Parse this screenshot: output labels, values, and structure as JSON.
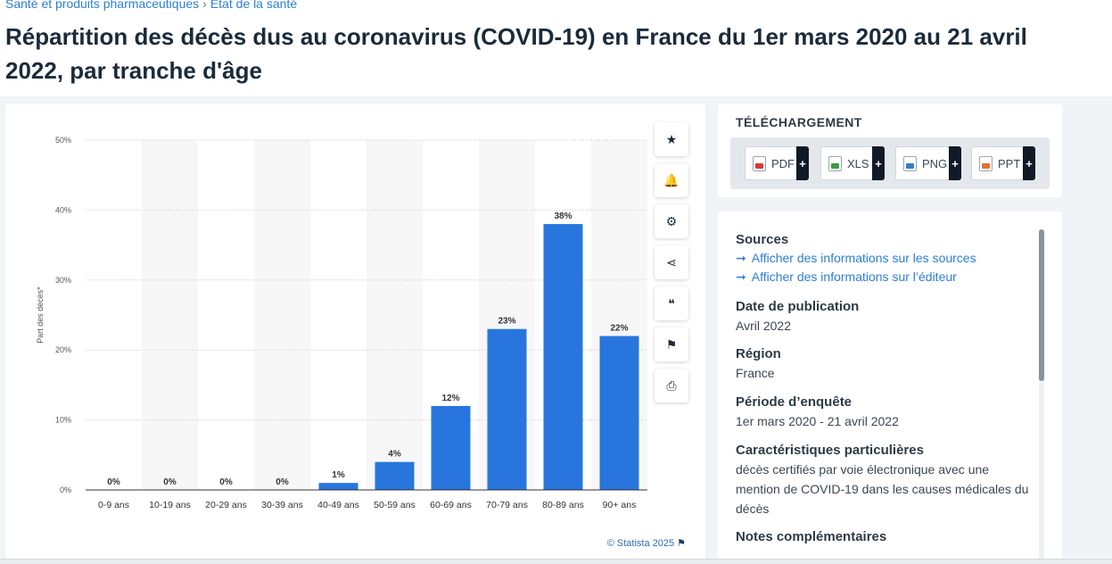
{
  "breadcrumb": {
    "item1": "Santé et produits pharmaceutiques",
    "item2": "Etat de la santé",
    "sep": "›"
  },
  "title": "Répartition des décès dus au coronavirus (COVID-19) en France du 1er mars 2020 au 21 avril 2022, par tranche d'âge",
  "chart_data": {
    "type": "bar",
    "title": "",
    "xlabel": "",
    "ylabel": "Part des décès*",
    "categories": [
      "0-9 ans",
      "10-19 ans",
      "20-29 ans",
      "30-39 ans",
      "40-49 ans",
      "50-59 ans",
      "60-69 ans",
      "70-79 ans",
      "80-89 ans",
      "90+ ans"
    ],
    "values": [
      0,
      0,
      0,
      0,
      1,
      4,
      12,
      23,
      38,
      22
    ],
    "value_labels": [
      "0%",
      "0%",
      "0%",
      "0%",
      "1%",
      "4%",
      "12%",
      "23%",
      "38%",
      "22%"
    ],
    "ylim": [
      0,
      50
    ],
    "yticks": [
      0,
      10,
      20,
      30,
      40,
      50
    ],
    "ytick_labels": [
      "0%",
      "10%",
      "20%",
      "30%",
      "40%",
      "50%"
    ],
    "bar_color": "#2876dd",
    "grid": true
  },
  "credit": {
    "text": "© Statista 2025",
    "flag": "⚑"
  },
  "toolbar": [
    {
      "name": "favorite-star-icon",
      "glyph": "★"
    },
    {
      "name": "notification-bell-icon",
      "glyph": "🔔"
    },
    {
      "name": "settings-gear-icon",
      "glyph": "⚙"
    },
    {
      "name": "share-icon",
      "glyph": "⋖"
    },
    {
      "name": "cite-quote-icon",
      "glyph": "❝"
    },
    {
      "name": "language-flag-icon",
      "glyph": "⚑"
    },
    {
      "name": "print-icon",
      "glyph": "⎙"
    }
  ],
  "download": {
    "title": "TÉLÉCHARGEMENT",
    "pdf": "PDF",
    "xls": "XLS",
    "png": "PNG",
    "ppt": "PPT",
    "plus": "+",
    "colors": {
      "pdf": "#d8373b",
      "xls": "#3a9a3f",
      "png": "#3a7bc8",
      "ppt": "#e0752d"
    }
  },
  "info": {
    "sources_label": "Sources",
    "sources_link1": "Afficher des informations sur les sources",
    "sources_link2": "Afficher des informations sur l’éditeur",
    "date_label": "Date de publication",
    "date_value": "Avril 2022",
    "region_label": "Région",
    "region_value": "France",
    "period_label": "Période d’enquête",
    "period_value": "1er mars 2020 - 21 avril 2022",
    "features_label": "Caractéristiques particulières",
    "features_value": "décès certifiés par voie électronique avec une mention de COVID-19 dans les causes médicales du décès",
    "notes_label": "Notes complémentaires",
    "arrow": "➞"
  }
}
